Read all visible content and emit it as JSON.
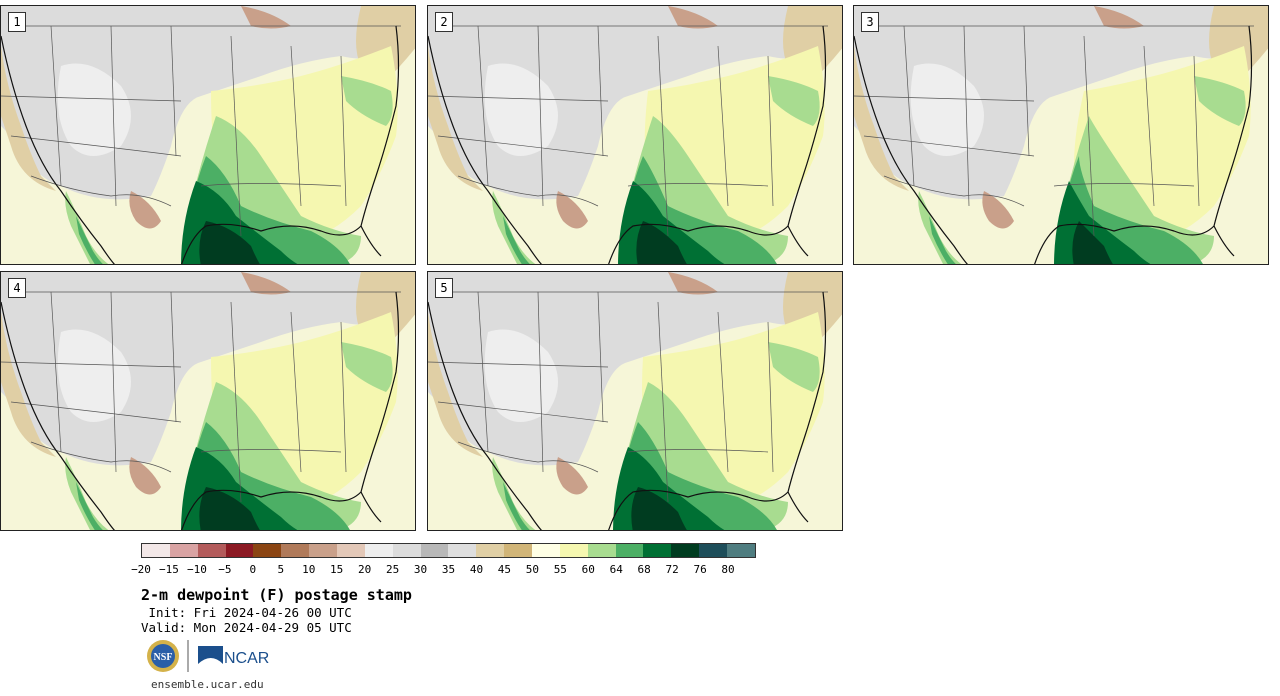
{
  "panels": [
    {
      "label": "1"
    },
    {
      "label": "2"
    },
    {
      "label": "3"
    },
    {
      "label": "4"
    },
    {
      "label": "5"
    }
  ],
  "colorbar": {
    "colors": [
      "#f3e8e8",
      "#d9a3a3",
      "#b35b5b",
      "#8c1a24",
      "#8b4513",
      "#b07a5a",
      "#c9a08a",
      "#e3c8b8",
      "#eeeeee",
      "#dcdcdc",
      "#b8b8b8",
      "#dedede",
      "#e0cfa5",
      "#d1b578",
      "#ffffe5",
      "#f5f7b0",
      "#a8dc90",
      "#4caf65",
      "#007034",
      "#003c20",
      "#1e4e5a",
      "#4f7d80"
    ],
    "ticks": [
      "−20",
      "−15",
      "−10",
      "−5",
      "0",
      "5",
      "10",
      "15",
      "20",
      "25",
      "30",
      "35",
      "40",
      "45",
      "50",
      "55",
      "60",
      "64",
      "68",
      "72",
      "76",
      "80"
    ]
  },
  "title": "2-m dewpoint (F) postage stamp",
  "init": " Init: Fri 2024-04-26 00 UTC",
  "valid": "Valid: Mon 2024-04-29 05 UTC",
  "logos": {
    "nsf": "NSF",
    "ncar": "NCAR"
  },
  "footer": "ensemble.ucar.edu"
}
